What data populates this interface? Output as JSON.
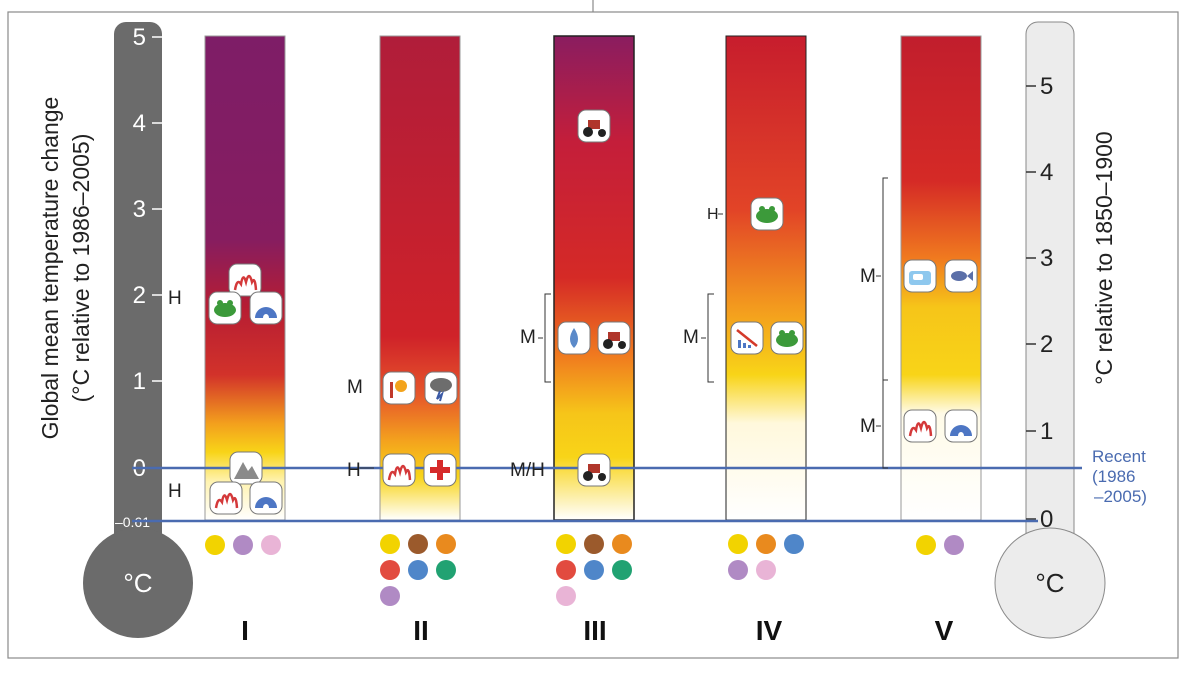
{
  "left_axis": {
    "title_line1": "Global mean temperature change",
    "title_line2": "(°C relative to 1986–2005)",
    "unit": "°C",
    "ticks": [
      "5",
      "4",
      "3",
      "2",
      "1",
      "0",
      "–0.61"
    ]
  },
  "right_axis": {
    "title": "°C relative to 1850–1900",
    "unit": "°C",
    "ticks": [
      "5",
      "4",
      "3",
      "2",
      "1",
      "0"
    ]
  },
  "recent_label": [
    "Recent",
    "(1986",
    "–2005)"
  ],
  "columns": [
    {
      "id": "I",
      "label": "I"
    },
    {
      "id": "II",
      "label": "II"
    },
    {
      "id": "III",
      "label": "III"
    },
    {
      "id": "IV",
      "label": "IV"
    },
    {
      "id": "V",
      "label": "V"
    }
  ],
  "confidence_labels": {
    "I_upper": "H",
    "I_lower": "H",
    "II_upper": "M",
    "II_lower": "H",
    "III_upper": "M",
    "III_lower": "M/H",
    "IV_upper": "H",
    "IV_lower": "M",
    "V_upper": "M",
    "V_lower": "M"
  },
  "icons": {
    "coral": "coral-icon",
    "igloo": "igloo-icon",
    "frog": "frog-icon",
    "mountain": "mountain-icon",
    "sun": "heat-sun-icon",
    "storm": "storm-cloud-icon",
    "medical": "medical-cross-icon",
    "tractor": "tractor-icon",
    "water": "water-drop-icon",
    "economy": "economic-loss-icon",
    "sea_ice": "sea-ice-icon",
    "fish": "fish-icon"
  },
  "dot_colors": {
    "yellow": "#f2d300",
    "lavender": "#b08ac4",
    "pink": "#e9b4d6",
    "brown": "#9b5a2c",
    "orange": "#e98a1e",
    "red": "#e24b3f",
    "blue": "#4f86c9",
    "green": "#21a272"
  },
  "colors": {
    "purple": "#7f1d66",
    "red": "#c41e2e",
    "orange": "#ee6c1f",
    "yellow": "#f8d41a",
    "recent_line": "#4a6bb0",
    "left_thermo": "#6b6b6b",
    "right_thermo": "#ececec"
  }
}
